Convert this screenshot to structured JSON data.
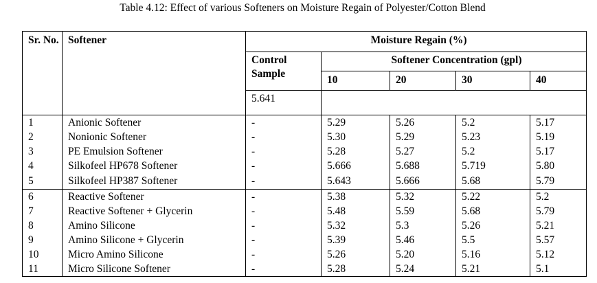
{
  "title": "Table 4.12: Effect of various Softeners on Moisture Regain of Polyester/Cotton Blend",
  "headers": {
    "sr": "Sr. No.",
    "softener": "Softener",
    "moisture": "Moisture Regain (%)",
    "control": "Control Sample",
    "concentration": "Softener Concentration (gpl)",
    "conc": [
      "10",
      "20",
      "30",
      "40"
    ]
  },
  "control_value": "5.641",
  "rows": [
    {
      "sr": "1",
      "name": "Anionic Softener",
      "control": "-",
      "v": [
        "5.29",
        "5.26",
        "5.2",
        "5.17"
      ]
    },
    {
      "sr": "2",
      "name": "Nonionic Softener",
      "control": "-",
      "v": [
        "5.30",
        "5.29",
        "5.23",
        "5.19"
      ]
    },
    {
      "sr": "3",
      "name": "PE Emulsion Softener",
      "control": "-",
      "v": [
        "5.28",
        "5.27",
        "5.2",
        "5.17"
      ]
    },
    {
      "sr": "4",
      "name": "Silkofeel HP678 Softener",
      "control": "-",
      "v": [
        "5.666",
        "5.688",
        "5.719",
        "5.80"
      ]
    },
    {
      "sr": "5",
      "name": "Silkofeel HP387 Softener",
      "control": "-",
      "v": [
        "5.643",
        "5.666",
        "5.68",
        "5.79"
      ]
    },
    {
      "sr": "6",
      "name": "Reactive Softener",
      "control": "-",
      "v": [
        "5.38",
        "5.32",
        "5.22",
        "5.2"
      ]
    },
    {
      "sr": "7",
      "name": "Reactive Softener + Glycerin",
      "control": "-",
      "v": [
        "5.48",
        "5.59",
        "5.68",
        "5.79"
      ]
    },
    {
      "sr": "8",
      "name": "Amino Silicone",
      "control": "-",
      "v": [
        "5.32",
        "5.3",
        "5.26",
        "5.21"
      ]
    },
    {
      "sr": "9",
      "name": "Amino Silicone + Glycerin",
      "control": "-",
      "v": [
        "5.39",
        "5.46",
        "5.5",
        "5.57"
      ]
    },
    {
      "sr": "10",
      "name": "Micro Amino Silicone",
      "control": "-",
      "v": [
        "5.26",
        "5.20",
        "5.16",
        "5.12"
      ]
    },
    {
      "sr": "11",
      "name": "Micro Silicone Softener",
      "control": "-",
      "v": [
        "5.28",
        "5.24",
        "5.21",
        "5.1"
      ]
    }
  ]
}
